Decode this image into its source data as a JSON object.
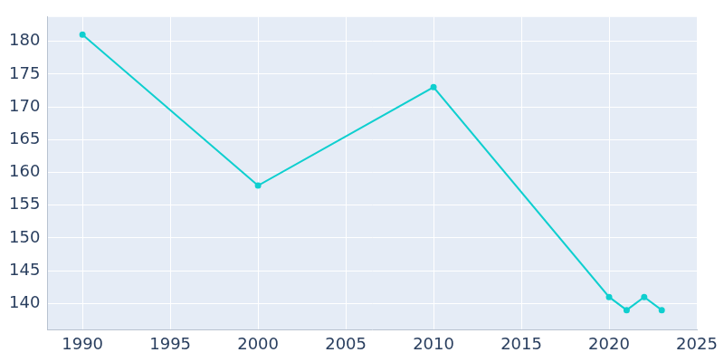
{
  "chart_data": {
    "type": "line",
    "x": [
      1990,
      2000,
      2010,
      2020,
      2021,
      2022,
      2023
    ],
    "values": [
      181,
      158,
      173,
      141,
      139,
      141,
      139
    ],
    "color": "#0fcfcf",
    "marker": "circle",
    "xlim": [
      1988,
      2025
    ],
    "xticks": [
      1990,
      1995,
      2000,
      2005,
      2010,
      2015,
      2020,
      2025
    ],
    "ylim": [
      136,
      183.7
    ],
    "yticks": [
      140,
      145,
      150,
      155,
      160,
      165,
      170,
      175,
      180
    ],
    "grid": true
  }
}
